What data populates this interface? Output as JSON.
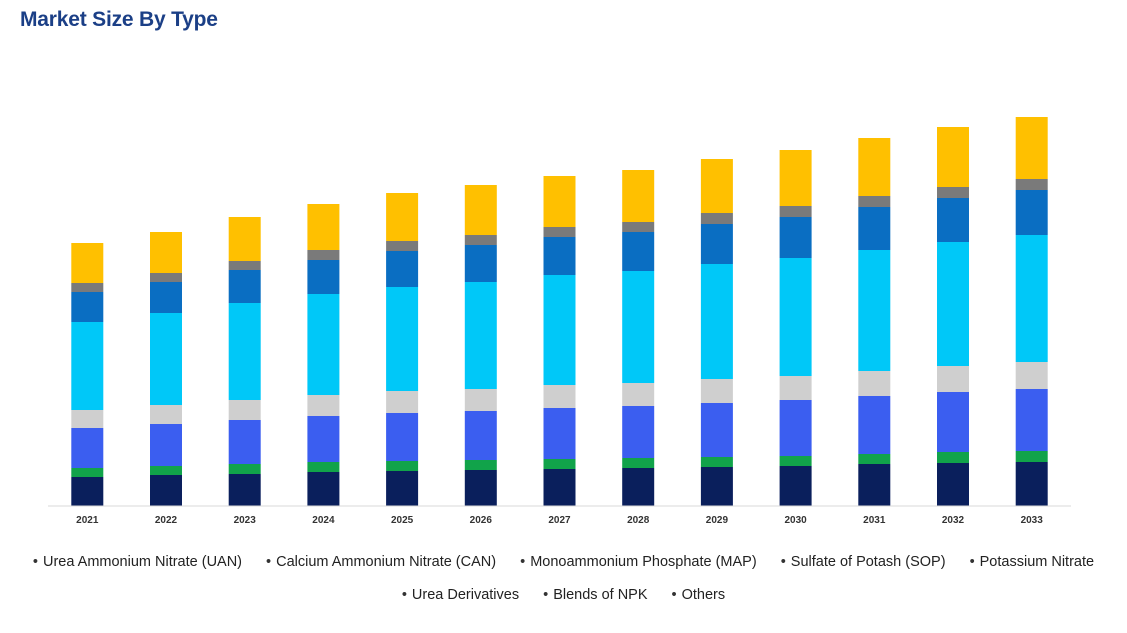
{
  "page": {
    "title": "Market Size By Type"
  },
  "chart_data": {
    "type": "bar",
    "stacked": true,
    "title": "Market Size By Type",
    "xlabel": "",
    "ylabel": "",
    "categories": [
      "2021",
      "2022",
      "2023",
      "2024",
      "2025",
      "2026",
      "2027",
      "2028",
      "2029",
      "2030",
      "2031",
      "2032",
      "2033"
    ],
    "series": [
      {
        "name": "Urea Ammonium Nitrate (UAN)",
        "color": "#0a1f5c",
        "values": [
          29,
          31,
          32,
          34,
          35,
          36,
          37,
          38,
          39,
          40,
          42,
          43,
          44
        ]
      },
      {
        "name": "Calcium Ammonium Nitrate (CAN)",
        "color": "#11a34a",
        "values": [
          9,
          9,
          10,
          10,
          10,
          10,
          10,
          10,
          10,
          10,
          10,
          11,
          11
        ]
      },
      {
        "name": "Monoammonium Phosphate (MAP)",
        "color": "#3b5ef0",
        "values": [
          40,
          42,
          44,
          46,
          48,
          49,
          51,
          52,
          54,
          56,
          58,
          60,
          62
        ]
      },
      {
        "name": "Sulfate of Potash (SOP)",
        "color": "#cfcfcf",
        "values": [
          18,
          19,
          20,
          21,
          22,
          22,
          23,
          23,
          24,
          24,
          25,
          26,
          27
        ]
      },
      {
        "name": "Potassium Nitrate",
        "color": "#00c8f8",
        "values": [
          88,
          92,
          97,
          101,
          104,
          107,
          110,
          112,
          115,
          118,
          121,
          124,
          127
        ]
      },
      {
        "name": "Urea Derivatives",
        "color": "#0a6ec2",
        "values": [
          30,
          31,
          33,
          34,
          36,
          37,
          38,
          39,
          40,
          41,
          43,
          44,
          45
        ]
      },
      {
        "name": "Blends of NPK",
        "color": "#7a7a7a",
        "values": [
          9,
          9,
          9,
          10,
          10,
          10,
          10,
          10,
          11,
          11,
          11,
          11,
          11
        ]
      },
      {
        "name": "Others",
        "color": "#ffc000",
        "values": [
          40,
          41,
          44,
          46,
          48,
          50,
          51,
          52,
          54,
          56,
          58,
          60,
          62
        ]
      }
    ],
    "ylim": [
      0,
      400
    ],
    "grid": false,
    "legend_position": "bottom"
  }
}
